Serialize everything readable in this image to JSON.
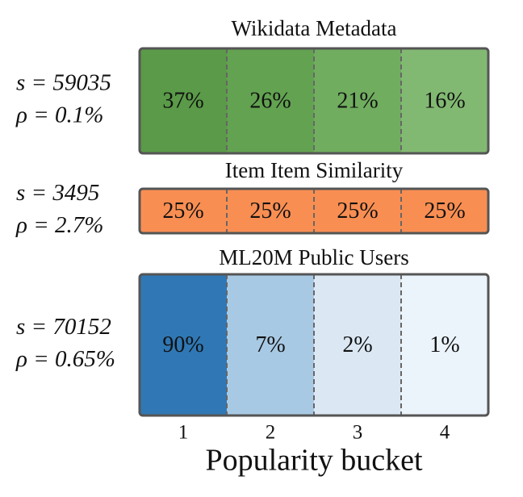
{
  "chart_data": {
    "type": "heatmap",
    "xlabel": "Popularity bucket",
    "categories": [
      "1",
      "2",
      "3",
      "4"
    ],
    "panels": [
      {
        "title": "Wikidata Metadata",
        "labels": [
          "s = 59035",
          "ρ = 0.1%"
        ],
        "values": [
          37,
          26,
          21,
          16
        ],
        "value_labels": [
          "37%",
          "26%",
          "21%",
          "16%"
        ],
        "colors": [
          "#5a9a48",
          "#62a250",
          "#70ad5f",
          "#82b972"
        ]
      },
      {
        "title": "Item Item Similarity",
        "labels": [
          "s = 3495",
          "ρ = 2.7%"
        ],
        "values": [
          25,
          25,
          25,
          25
        ],
        "value_labels": [
          "25%",
          "25%",
          "25%",
          "25%"
        ],
        "colors": [
          "#f98e52",
          "#f98e52",
          "#f98e52",
          "#f98e52"
        ]
      },
      {
        "title": "ML20M Public Users",
        "labels": [
          "s = 70152",
          "ρ = 0.65%"
        ],
        "values": [
          90,
          7,
          2,
          1
        ],
        "value_labels": [
          "90%",
          "7%",
          "2%",
          "1%"
        ],
        "colors": [
          "#2f78b5",
          "#a8c9e4",
          "#dbe8f4",
          "#ebf3fb"
        ]
      }
    ]
  }
}
